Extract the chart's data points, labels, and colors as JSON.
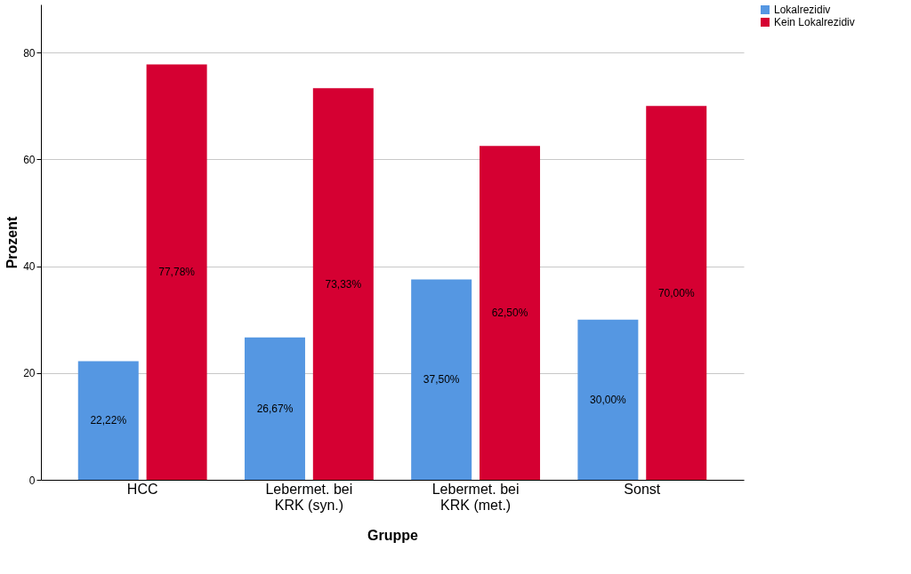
{
  "chart_data": {
    "type": "bar",
    "xlabel": "Gruppe",
    "ylabel": "Prozent",
    "categories": [
      "HCC",
      "Lebermet. bei KRK (syn.)",
      "Lebermet. bei KRK (met.)",
      "Sonst"
    ],
    "series": [
      {
        "name": "Lokalrezidiv",
        "color": "#5597e2",
        "values": [
          22.22,
          26.67,
          37.5,
          30.0
        ],
        "value_labels": [
          "22,22%",
          "26,67%",
          "37,50%",
          "30,00%"
        ]
      },
      {
        "name": "Kein Lokalrezidiv",
        "color": "#d50032",
        "values": [
          77.78,
          73.33,
          62.5,
          70.0
        ],
        "value_labels": [
          "77,78%",
          "73,33%",
          "62,50%",
          "70,00%"
        ]
      }
    ],
    "ylim": [
      0,
      89
    ],
    "yticks": [
      0,
      20,
      40,
      60,
      80
    ],
    "grid": "y",
    "legend": "top right"
  }
}
